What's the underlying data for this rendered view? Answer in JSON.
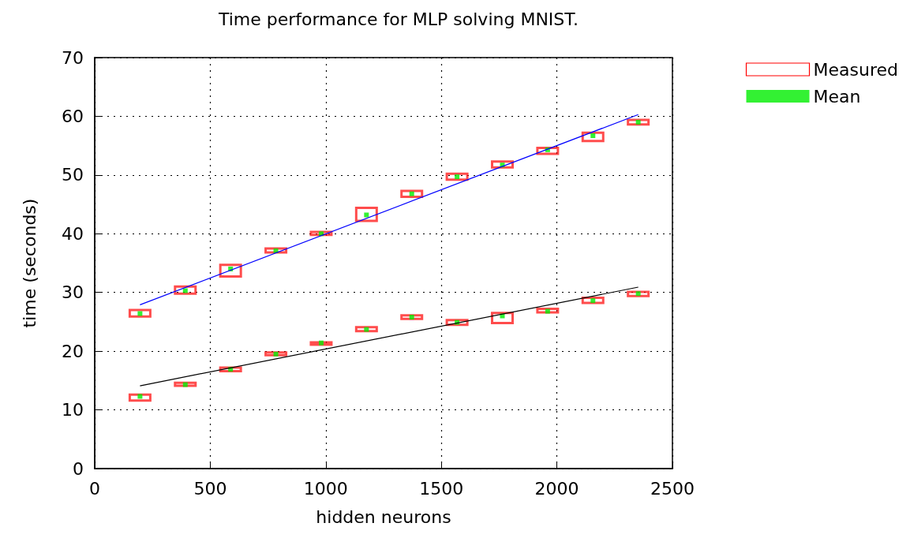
{
  "chart_data": {
    "type": "box",
    "title": "Time performance for MLP solving MNIST.",
    "xlabel": "hidden neurons",
    "ylabel": "time (seconds)",
    "xlim": [
      0,
      2500
    ],
    "xticks": [
      0,
      500,
      1000,
      1500,
      2000,
      2500
    ],
    "ylim": [
      0,
      70
    ],
    "yticks": [
      0,
      10,
      20,
      30,
      40,
      50,
      60,
      70
    ],
    "grid": true,
    "legend": "top right",
    "series": [
      {
        "name": "Measured",
        "type": "box",
        "color": "#ff0000",
        "x": [
          196,
          392,
          588,
          784,
          980,
          1176,
          1372,
          1568,
          1764,
          1960,
          2156,
          2352,
          196,
          392,
          588,
          784,
          980,
          1176,
          1372,
          1568,
          1764,
          1960,
          2156,
          2352
        ],
        "boxes": [
          {
            "low": 25.9,
            "q1": 25.9,
            "q3": 27.0,
            "high": 27.0
          },
          {
            "low": 29.8,
            "q1": 29.8,
            "q3": 31.0,
            "high": 31.0
          },
          {
            "low": 32.7,
            "q1": 32.7,
            "q3": 34.7,
            "high": 34.7
          },
          {
            "low": 36.8,
            "q1": 36.8,
            "q3": 37.5,
            "high": 37.5
          },
          {
            "low": 39.8,
            "q1": 39.8,
            "q3": 40.3,
            "high": 40.3
          },
          {
            "low": 42.2,
            "q1": 42.2,
            "q3": 44.4,
            "high": 44.4
          },
          {
            "low": 46.3,
            "q1": 46.3,
            "q3": 47.3,
            "high": 47.3
          },
          {
            "low": 49.2,
            "q1": 49.2,
            "q3": 50.2,
            "high": 50.2
          },
          {
            "low": 51.3,
            "q1": 51.3,
            "q3": 52.3,
            "high": 52.3
          },
          {
            "low": 53.6,
            "q1": 53.6,
            "q3": 54.6,
            "high": 54.6
          },
          {
            "low": 55.8,
            "q1": 55.8,
            "q3": 57.2,
            "high": 57.2
          },
          {
            "low": 58.6,
            "q1": 58.6,
            "q3": 59.4,
            "high": 59.4
          },
          {
            "low": 11.6,
            "q1": 11.6,
            "q3": 12.6,
            "high": 12.6
          },
          {
            "low": 14.1,
            "q1": 14.1,
            "q3": 14.6,
            "high": 14.6
          },
          {
            "low": 16.6,
            "q1": 16.6,
            "q3": 17.2,
            "high": 17.2
          },
          {
            "low": 19.3,
            "q1": 19.3,
            "q3": 19.8,
            "high": 19.8
          },
          {
            "low": 21.1,
            "q1": 21.1,
            "q3": 21.5,
            "high": 21.5
          },
          {
            "low": 23.4,
            "q1": 23.4,
            "q3": 24.1,
            "high": 24.1
          },
          {
            "low": 25.5,
            "q1": 25.5,
            "q3": 26.1,
            "high": 26.1
          },
          {
            "low": 24.5,
            "q1": 24.5,
            "q3": 25.3,
            "high": 25.3
          },
          {
            "low": 24.8,
            "q1": 24.8,
            "q3": 26.5,
            "high": 26.5
          },
          {
            "low": 26.6,
            "q1": 26.6,
            "q3": 27.2,
            "high": 27.2
          },
          {
            "low": 28.2,
            "q1": 28.2,
            "q3": 29.1,
            "high": 29.1
          },
          {
            "low": 29.4,
            "q1": 29.4,
            "q3": 30.1,
            "high": 30.1
          }
        ]
      },
      {
        "name": "Mean",
        "type": "scatter",
        "marker": "square",
        "color": "#00ee00",
        "x": [
          196,
          392,
          588,
          784,
          980,
          1176,
          1372,
          1568,
          1764,
          1960,
          2156,
          2352,
          196,
          392,
          588,
          784,
          980,
          1176,
          1372,
          1568,
          1764,
          1960,
          2156,
          2352
        ],
        "values": [
          26.4,
          30.3,
          34.0,
          37.1,
          40.0,
          43.2,
          46.8,
          49.7,
          51.7,
          54.3,
          56.7,
          59.0,
          12.3,
          14.3,
          16.9,
          19.5,
          21.4,
          23.7,
          25.8,
          24.9,
          26.0,
          26.8,
          28.6,
          29.8
        ]
      },
      {
        "type": "line",
        "color": "#0000ff",
        "marker": "none",
        "line_style": "solid",
        "x": [
          196,
          2352
        ],
        "values": [
          27.9,
          60.3
        ]
      },
      {
        "type": "line",
        "color": "#000000",
        "marker": "none",
        "line_style": "solid",
        "x": [
          196,
          2352
        ],
        "values": [
          14.1,
          30.9
        ]
      }
    ]
  }
}
